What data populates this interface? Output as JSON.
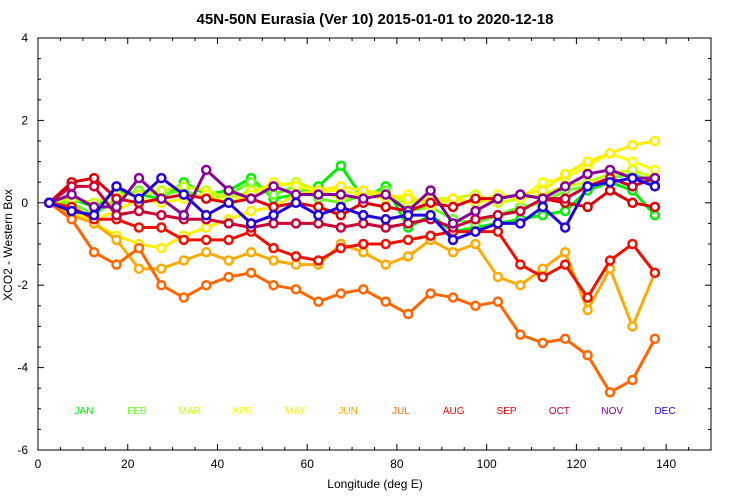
{
  "chart_data": {
    "type": "line",
    "title": "45N-50N Eurasia (Ver 10)   2015-01-01 to 2020-12-18",
    "xlabel": "Longitude (deg E)",
    "ylabel": "XCO2 - Western Box",
    "xlim": [
      0,
      150
    ],
    "ylim": [
      -6,
      4
    ],
    "xticks": [
      0,
      20,
      40,
      60,
      80,
      100,
      120,
      140
    ],
    "yticks": [
      -6,
      -4,
      -2,
      0,
      2,
      4
    ],
    "grid": false,
    "x": [
      2.5,
      7.5,
      12.5,
      17.5,
      22.5,
      27.5,
      32.5,
      37.5,
      42.5,
      47.5,
      52.5,
      57.5,
      62.5,
      67.5,
      72.5,
      77.5,
      82.5,
      87.5,
      92.5,
      97.5,
      102.5,
      107.5,
      112.5,
      117.5,
      122.5,
      127.5,
      132.5,
      137.5
    ],
    "series": [
      {
        "name": "JAN",
        "color": "#00ee00",
        "values": [
          0,
          0.1,
          -0.1,
          0.3,
          0.2,
          0.1,
          0.5,
          0.2,
          0.3,
          0.6,
          0.1,
          0.2,
          0.4,
          0.9,
          0.1,
          0.4,
          -0.6,
          -0.3,
          -0.7,
          -0.6,
          -0.5,
          -0.4,
          -0.3,
          -0.2,
          0.3,
          0.5,
          0.3,
          -0.3
        ]
      },
      {
        "name": "FEB",
        "color": "#66ff22",
        "values": [
          0,
          0.0,
          -0.3,
          0.1,
          0.3,
          0.2,
          0.3,
          0.1,
          0.2,
          0.5,
          0.2,
          0.4,
          0.1,
          0.0,
          0.2,
          0.3,
          -0.2,
          -0.1,
          -0.4,
          -0.5,
          -0.3,
          -0.1,
          0.0,
          0.3,
          0.4,
          0.6,
          0.7,
          0.5
        ]
      },
      {
        "name": "MAR",
        "color": "#ccff00",
        "values": [
          0,
          0.1,
          0.0,
          0.2,
          0.2,
          0.3,
          0.4,
          0.3,
          0.1,
          0.3,
          0.4,
          0.5,
          0.3,
          0.1,
          0.2,
          0.2,
          0.0,
          0.1,
          0.1,
          0.2,
          0.0,
          0.1,
          0.2,
          0.4,
          0.5,
          0.7,
          0.8,
          0.6
        ]
      },
      {
        "name": "APR",
        "color": "#ffff00",
        "values": [
          0,
          -0.1,
          -0.4,
          -0.2,
          0.1,
          0.0,
          0.1,
          0.2,
          0.0,
          0.2,
          0.5,
          0.4,
          0.3,
          0.3,
          0.2,
          0.1,
          0.2,
          -0.1,
          0.1,
          0.0,
          0.2,
          0.1,
          0.5,
          0.6,
          0.9,
          1.2,
          1.0,
          0.8
        ]
      },
      {
        "name": "MAY",
        "color": "#ffee00",
        "values": [
          0,
          -0.2,
          -0.5,
          -0.8,
          -1.0,
          -1.1,
          -0.8,
          -0.6,
          -0.4,
          -0.2,
          -0.1,
          0.2,
          0.3,
          0.4,
          0.3,
          0.2,
          0.1,
          0.0,
          0.1,
          0.0,
          0.1,
          0.2,
          0.3,
          0.7,
          1.0,
          1.2,
          1.4,
          1.5
        ]
      },
      {
        "name": "JUN",
        "color": "#ffaa00",
        "values": [
          0,
          -0.3,
          -0.5,
          -0.9,
          -1.6,
          -1.6,
          -1.4,
          -1.2,
          -1.4,
          -1.2,
          -1.4,
          -1.5,
          -1.5,
          -1.0,
          -1.2,
          -1.5,
          -1.3,
          -0.9,
          -1.2,
          -1.0,
          -1.8,
          -2.0,
          -1.6,
          -1.2,
          -2.6,
          -1.6,
          -3.0,
          -1.7
        ]
      },
      {
        "name": "JUL",
        "color": "#ff6600",
        "values": [
          0,
          -0.4,
          -1.2,
          -1.5,
          -1.1,
          -2.0,
          -2.3,
          -2.0,
          -1.8,
          -1.7,
          -2.0,
          -2.1,
          -2.4,
          -2.2,
          -2.1,
          -2.4,
          -2.7,
          -2.2,
          -2.3,
          -2.5,
          -2.4,
          -3.2,
          -3.4,
          -3.3,
          -3.7,
          -4.6,
          -4.3,
          -3.3
        ]
      },
      {
        "name": "AUG",
        "color": "#ee1100",
        "values": [
          0,
          -0.1,
          -0.4,
          -0.4,
          -0.6,
          -0.6,
          -0.9,
          -0.9,
          -0.9,
          -0.7,
          -1.1,
          -1.3,
          -1.4,
          -1.1,
          -1.0,
          -1.0,
          -0.9,
          -0.8,
          -0.7,
          -0.7,
          -0.7,
          -1.5,
          -1.8,
          -1.5,
          -2.3,
          -1.4,
          -1.0,
          -1.7
        ]
      },
      {
        "name": "SEP",
        "color": "#dd0000",
        "values": [
          0,
          0.5,
          0.6,
          0.1,
          0.0,
          0.1,
          0.2,
          0.1,
          0.0,
          0.1,
          -0.1,
          0.0,
          -0.1,
          -0.3,
          0.0,
          -0.1,
          -0.2,
          0.0,
          -0.1,
          0.1,
          0.1,
          0.2,
          0.1,
          0.0,
          -0.1,
          0.3,
          0.0,
          -0.1
        ]
      },
      {
        "name": "OCT",
        "color": "#cc0033",
        "values": [
          0,
          0.4,
          0.4,
          -0.3,
          -0.2,
          -0.3,
          -0.4,
          -0.4,
          -0.5,
          -0.6,
          -0.5,
          -0.5,
          -0.5,
          -0.6,
          -0.5,
          -0.6,
          -0.5,
          -0.4,
          -0.6,
          -0.4,
          -0.3,
          -0.2,
          0.1,
          0.1,
          0.4,
          0.6,
          0.4,
          0.6
        ]
      },
      {
        "name": "NOV",
        "color": "#880099",
        "values": [
          0,
          0.2,
          -0.1,
          -0.1,
          0.6,
          0.1,
          -0.3,
          0.8,
          0.3,
          0.1,
          0.4,
          0.2,
          0.2,
          0.2,
          0.1,
          0.2,
          -0.2,
          0.3,
          -0.5,
          -0.2,
          0.1,
          0.2,
          0.1,
          0.4,
          0.7,
          0.8,
          0.6,
          0.6
        ]
      },
      {
        "name": "DEC",
        "color": "#2200dd",
        "values": [
          0,
          -0.2,
          -0.3,
          0.4,
          0.1,
          0.6,
          0.2,
          -0.3,
          0.0,
          -0.5,
          -0.3,
          0.0,
          -0.3,
          -0.1,
          -0.3,
          -0.4,
          -0.3,
          -0.3,
          -0.9,
          -0.7,
          -0.5,
          -0.5,
          -0.1,
          -0.6,
          0.4,
          0.5,
          0.6,
          0.4
        ]
      }
    ]
  }
}
